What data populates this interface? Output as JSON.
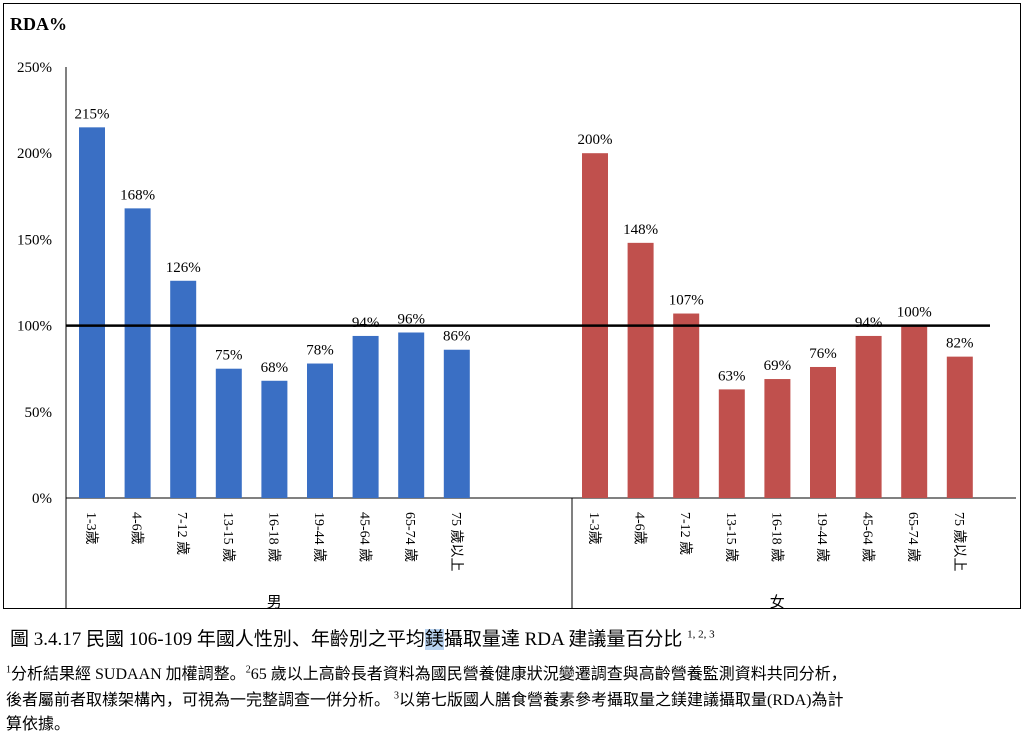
{
  "chart_data": {
    "type": "bar",
    "ylabel": "RDA%",
    "ylim": [
      0,
      250
    ],
    "yticks": [
      "0%",
      "50%",
      "100%",
      "150%",
      "200%",
      "250%"
    ],
    "reference_line": 100,
    "groups": [
      {
        "name": "男",
        "color": "#3a6fc4",
        "categories": [
          "1-3歲",
          "4-6歲",
          "7-12 歲",
          "13-15 歲",
          "16-18 歲",
          "19-44 歲",
          "45-64 歲",
          "65-74 歲",
          "75 歲以上"
        ],
        "values": [
          215,
          168,
          126,
          75,
          68,
          78,
          94,
          96,
          86
        ],
        "labels": [
          "215%",
          "168%",
          "126%",
          "75%",
          "68%",
          "78%",
          "94%",
          "96%",
          "86%"
        ]
      },
      {
        "name": "女",
        "color": "#c0504d",
        "categories": [
          "1-3歲",
          "4-6歲",
          "7-12 歲",
          "13-15 歲",
          "16-18 歲",
          "19-44 歲",
          "45-64 歲",
          "65-74 歲",
          "75 歲以上"
        ],
        "values": [
          200,
          148,
          107,
          63,
          69,
          76,
          94,
          100,
          82
        ],
        "labels": [
          "200%",
          "148%",
          "107%",
          "63%",
          "69%",
          "76%",
          "94%",
          "100%",
          "82%"
        ]
      }
    ]
  },
  "caption": {
    "prefix": "圖 3.4.17 民國 106-109 年國人性別、年齡別之平均",
    "highlight": "鎂",
    "suffix": "攝取量達 RDA 建議量百分比",
    "sup": "1, 2, 3"
  },
  "notes": {
    "n1_num": "1",
    "n1": "分析結果經 SUDAAN 加權調整。",
    "n2_num": "2",
    "n2a": "65 歲以上高齡長者資料為國民營養健康狀況變遷調查與高齡營養監測資料共同分析，",
    "n2b": "後者屬前者取樣架構內，可視為一完整調查一併分析。",
    "n3_num": "3",
    "n3a": "以第七版國人膳食營養素參考攝取量之鎂建議攝取量(RDA)為計",
    "n3b": "算依據。"
  }
}
